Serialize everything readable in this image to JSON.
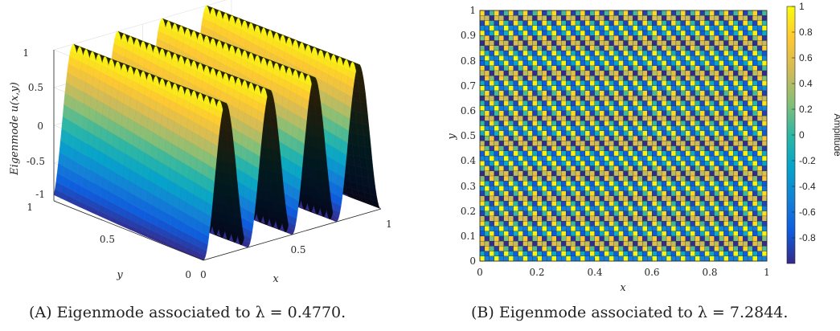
{
  "chart_data": [
    {
      "type": "surface",
      "panel_tag": "(A)",
      "caption": "Eigenmode associated to λ = 0.4770.",
      "zlabel": "Eigenmode u(x,y)",
      "xlabel": "x",
      "ylabel": "y",
      "xlim": [
        0,
        1
      ],
      "ylim": [
        0,
        1
      ],
      "zlim": [
        -1,
        1
      ],
      "x_ticks": [
        "0",
        "0.5",
        "1"
      ],
      "y_ticks": [
        "0",
        "0.5",
        "1"
      ],
      "z_ticks": [
        "-1",
        "-0.5",
        "0",
        "0.5",
        "1"
      ],
      "wave": {
        "oscillations_along_x": 8,
        "amplitude": 1,
        "form": "cosine ridges nearly constant along y"
      },
      "colormap": "parula",
      "grid": true
    },
    {
      "type": "heatmap",
      "panel_tag": "(B)",
      "caption": "Eigenmode associated to λ = 7.2844.",
      "xlabel": "x",
      "ylabel": "y",
      "xlim": [
        0,
        1
      ],
      "ylim": [
        0,
        1
      ],
      "x_ticks": [
        "0",
        "0.2",
        "0.4",
        "0.6",
        "0.8",
        "1"
      ],
      "y_ticks": [
        "0",
        "0.1",
        "0.2",
        "0.3",
        "0.4",
        "0.5",
        "0.6",
        "0.7",
        "0.8",
        "0.9",
        "1"
      ],
      "grid_size": [
        60,
        50
      ],
      "pattern": "diagonal stripes",
      "colorbar": {
        "label": "Amplitude",
        "range": [
          -1,
          1
        ],
        "ticks": [
          "1",
          "0.8",
          "0.6",
          "0.4",
          "0.2",
          "0",
          "-0.2",
          "-0.4",
          "-0.6",
          "-0.8"
        ]
      },
      "colormap": "parula"
    }
  ],
  "colors": {
    "parula": [
      "#352a87",
      "#0f5cdd",
      "#1481d6",
      "#06a4ca",
      "#2eb7a4",
      "#87bf77",
      "#d1bb59",
      "#fec832",
      "#f9fb0e"
    ],
    "axis": "#262626",
    "grid": "#e3e3e3"
  }
}
